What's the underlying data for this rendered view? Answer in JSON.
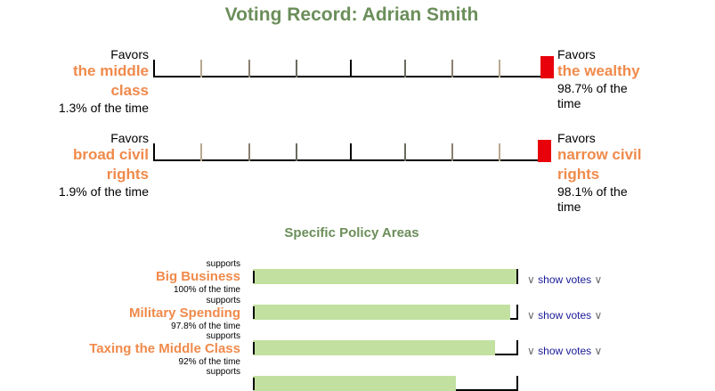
{
  "page": {
    "title": "Voting Record: Adrian Smith",
    "subtitle": "Specific Policy Areas"
  },
  "colors": {
    "title_green": "#6b8e5a",
    "accent_orange": "#f08a4b",
    "marker_red": "#e8000b",
    "bar_green": "#c2e0a0",
    "link_blue": "#1a1a99"
  },
  "scales": [
    {
      "left_favors": "Favors",
      "left_line1": "the middle",
      "left_line2": "class",
      "left_pct": "1.3% of the time",
      "right_favors": "Favors",
      "right_line1": "the wealthy",
      "right_pct_line1": "98.7% of the",
      "right_pct_line2": "time",
      "position_percent": 98.7
    },
    {
      "left_favors": "Favors",
      "left_line1": "broad civil",
      "left_line2": "rights",
      "left_pct": "1.9% of the time",
      "right_favors": "Favors",
      "right_line1": "narrow civil",
      "right_line2": "rights",
      "right_pct_line1": "98.1% of the",
      "right_pct_line2": "time",
      "position_percent": 98.1
    }
  ],
  "policy_areas": [
    {
      "prefix": "supports",
      "name": "Big Business",
      "pct_text": "100% of the time",
      "percent": 100,
      "show_votes": "show votes",
      "arrow_icon": "chevron-down-icon"
    },
    {
      "prefix": "supports",
      "name": "Military Spending",
      "pct_text": "97.8% of the time",
      "percent": 97.8,
      "show_votes": "show votes",
      "arrow_icon": "chevron-down-icon"
    },
    {
      "prefix": "supports",
      "name": "Taxing the Middle Class",
      "pct_text": "92% of the time",
      "percent": 92,
      "show_votes": "show votes",
      "arrow_icon": "chevron-down-icon"
    },
    {
      "prefix": "supports",
      "percent": 77
    }
  ]
}
